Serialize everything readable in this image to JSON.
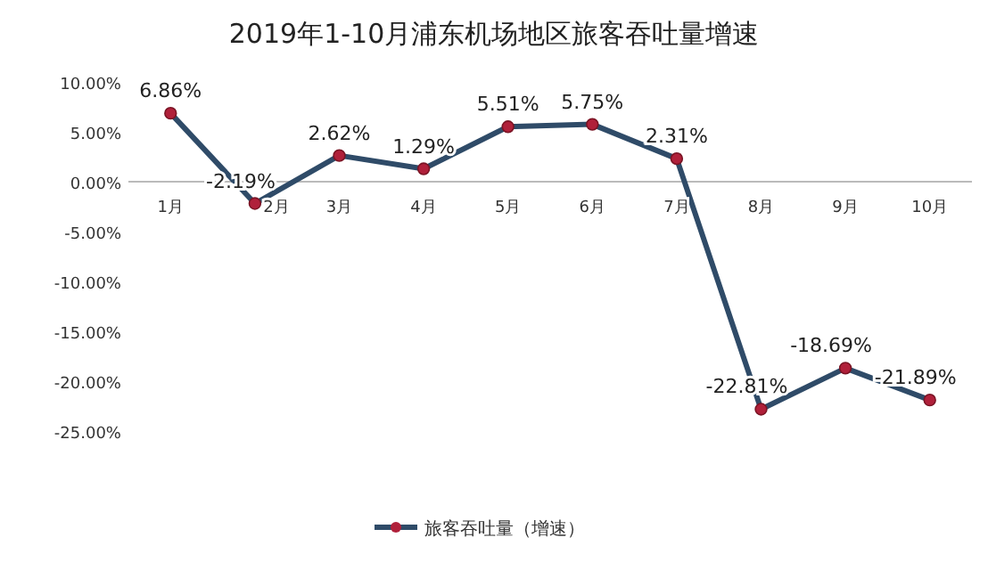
{
  "chart_data": {
    "type": "line",
    "title": "2019年1-10月浦东机场地区旅客吞吐量增速",
    "categories": [
      "1月",
      "2月",
      "3月",
      "4月",
      "5月",
      "6月",
      "7月",
      "8月",
      "9月",
      "10月"
    ],
    "series": [
      {
        "name": "旅客吞吐量（增速）",
        "color": "#2f4b68",
        "values": [
          6.86,
          -2.19,
          2.62,
          1.29,
          5.51,
          5.75,
          2.31,
          -22.81,
          -18.69,
          -21.89
        ],
        "value_labels": [
          "6.86%",
          "-2.19%",
          "2.62%",
          "1.29%",
          "5.51%",
          "5.75%",
          "2.31%",
          "-22.81%",
          "-18.69%",
          "-21.89%"
        ]
      }
    ],
    "ylim": [
      -25,
      10
    ],
    "yticks": [
      {
        "value": 10,
        "label": "10.00%"
      },
      {
        "value": 5,
        "label": "5.00%"
      },
      {
        "value": 0,
        "label": "0.00%"
      },
      {
        "value": -5,
        "label": "-5.00%"
      },
      {
        "value": -10,
        "label": "-10.00%"
      },
      {
        "value": -15,
        "label": "-15.00%"
      },
      {
        "value": -20,
        "label": "-20.00%"
      },
      {
        "value": -25,
        "label": "-25.00%"
      }
    ],
    "marker": "circle",
    "legend": "bottom",
    "grid": false
  }
}
